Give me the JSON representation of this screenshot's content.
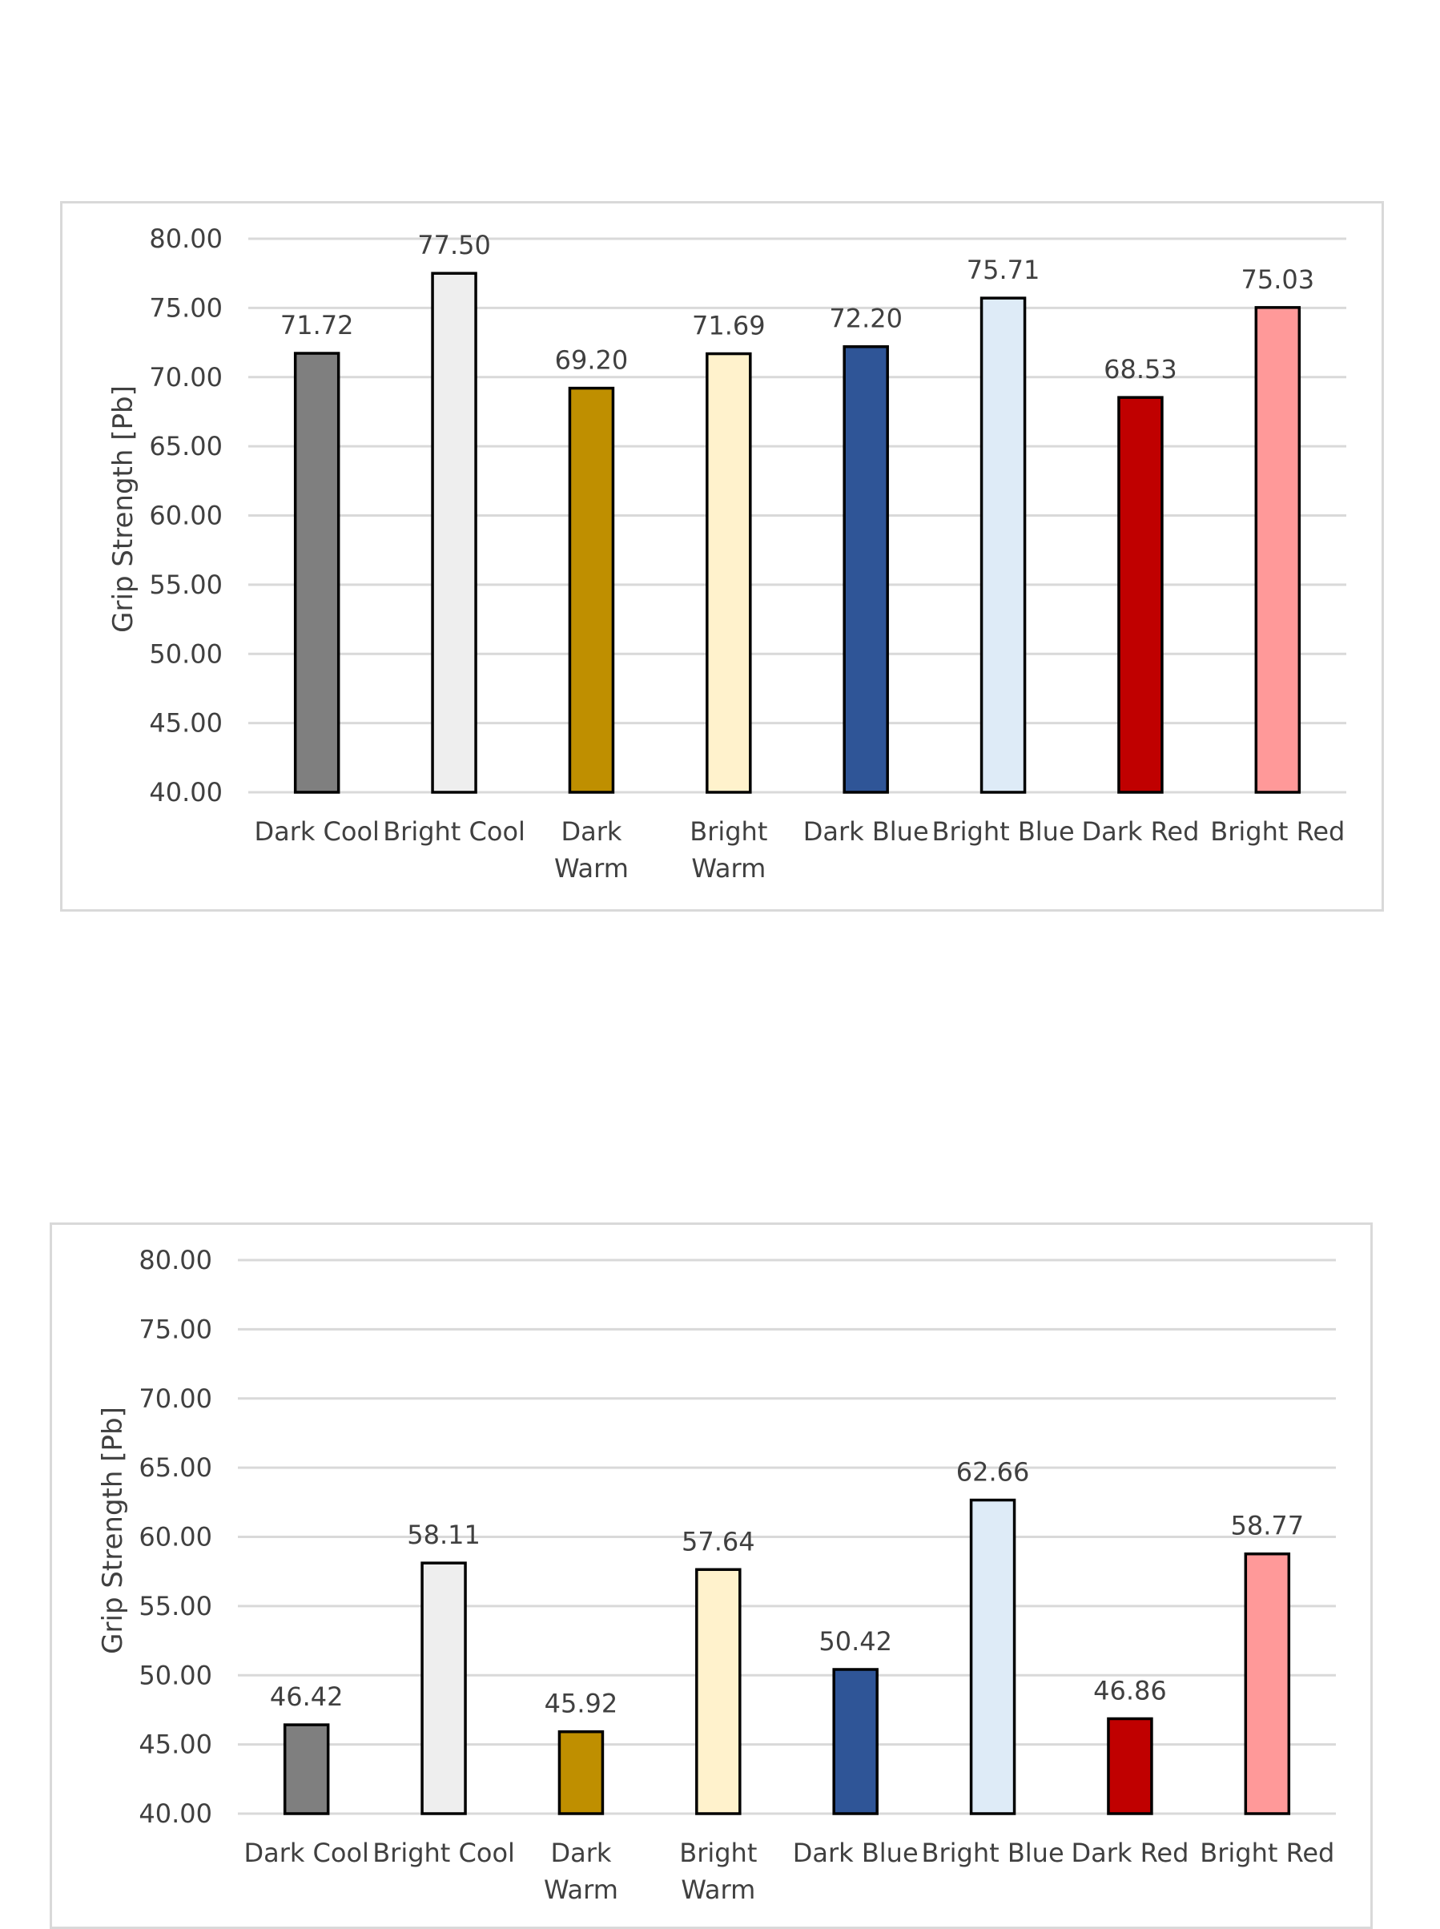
{
  "chart_data": [
    {
      "type": "bar",
      "ylabel": "Grip Strength [Pb]",
      "ylim": [
        40,
        80
      ],
      "y_ticks": [
        "40.00",
        "45.00",
        "50.00",
        "55.00",
        "60.00",
        "65.00",
        "70.00",
        "75.00",
        "80.00"
      ],
      "grid": true,
      "categories": [
        [
          "Dark Cool"
        ],
        [
          "Bright Cool"
        ],
        [
          "Dark",
          "Warm"
        ],
        [
          "Bright",
          "Warm"
        ],
        [
          "Dark Blue"
        ],
        [
          "Bright Blue"
        ],
        [
          "Dark Red"
        ],
        [
          "Bright Red"
        ]
      ],
      "values": [
        71.72,
        77.5,
        69.2,
        71.69,
        72.2,
        75.71,
        68.53,
        75.03
      ],
      "value_labels": [
        "71.72",
        "77.50",
        "69.20",
        "71.69",
        "72.20",
        "75.71",
        "68.53",
        "75.03"
      ],
      "colors": [
        "#7f7f7f",
        "#eeeeee",
        "#bf8f00",
        "#fff2cc",
        "#2f5597",
        "#deebf7",
        "#c00000",
        "#ff9999"
      ]
    },
    {
      "type": "bar",
      "ylabel": "Grip Strength [Pb]",
      "ylim": [
        40,
        80
      ],
      "y_ticks": [
        "40.00",
        "45.00",
        "50.00",
        "55.00",
        "60.00",
        "65.00",
        "70.00",
        "75.00",
        "80.00"
      ],
      "grid": true,
      "categories": [
        [
          "Dark Cool"
        ],
        [
          "Bright Cool"
        ],
        [
          "Dark",
          "Warm"
        ],
        [
          "Bright",
          "Warm"
        ],
        [
          "Dark Blue"
        ],
        [
          "Bright Blue"
        ],
        [
          "Dark Red"
        ],
        [
          "Bright Red"
        ]
      ],
      "values": [
        46.42,
        58.11,
        45.92,
        57.64,
        50.42,
        62.66,
        46.86,
        58.77
      ],
      "value_labels": [
        "46.42",
        "58.11",
        "45.92",
        "57.64",
        "50.42",
        "62.66",
        "46.86",
        "58.77"
      ],
      "colors": [
        "#7f7f7f",
        "#eeeeee",
        "#bf8f00",
        "#fff2cc",
        "#2f5597",
        "#deebf7",
        "#c00000",
        "#ff9999"
      ]
    }
  ]
}
